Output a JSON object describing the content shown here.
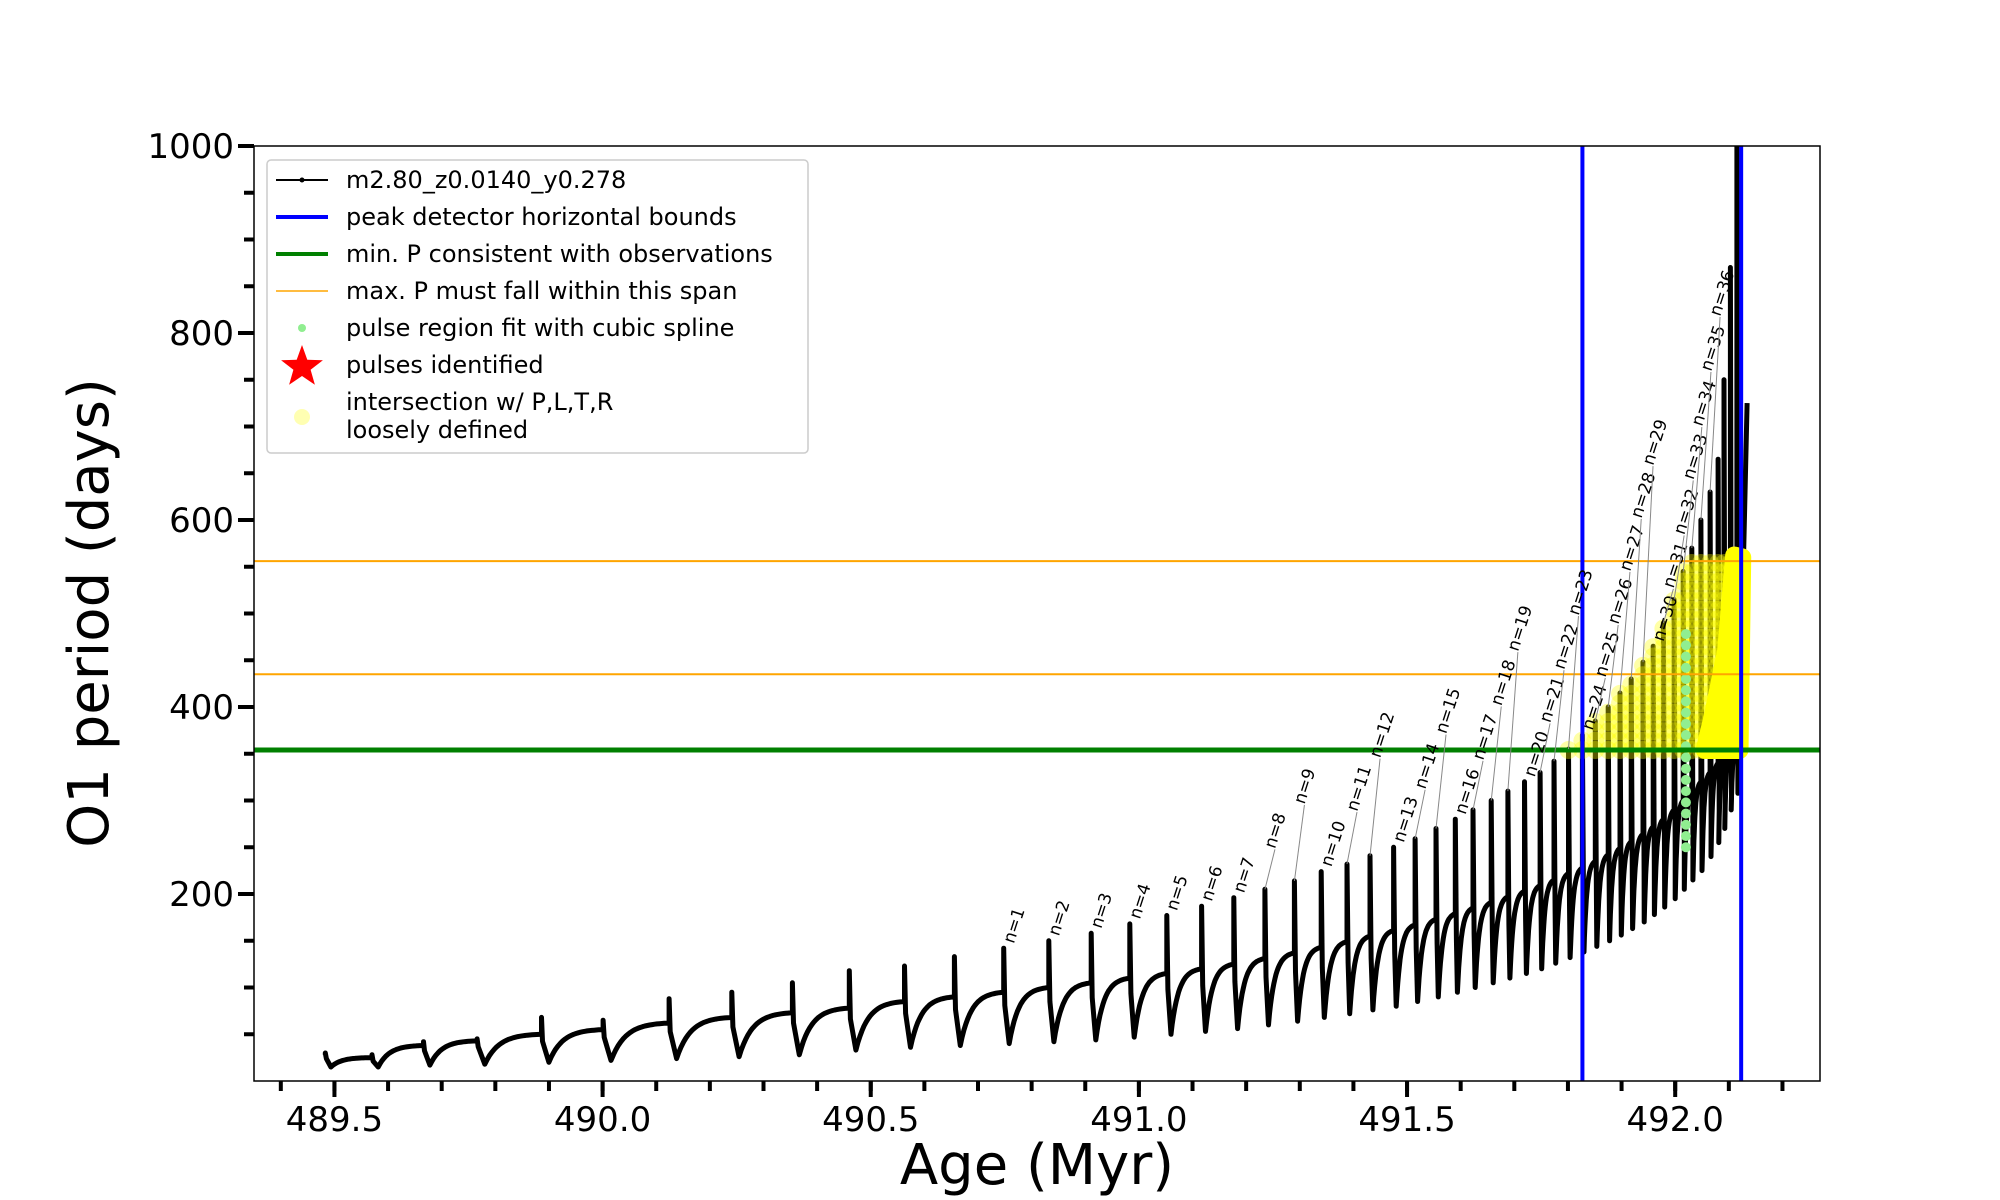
{
  "chart_data": {
    "type": "line",
    "title": "",
    "xlabel": "Age (Myr)",
    "ylabel": "O1 period (days)",
    "xlim": [
      489.35,
      492.27
    ],
    "ylim": [
      0,
      1000
    ],
    "x_major_ticks": [
      489.5,
      490.0,
      490.5,
      491.0,
      491.5,
      492.0
    ],
    "x_tick_labels": [
      "489.5",
      "490.0",
      "490.5",
      "491.0",
      "491.5",
      "492.0"
    ],
    "x_minor_step": 0.1,
    "y_major_ticks": [
      200,
      400,
      600,
      800,
      1000
    ],
    "y_tick_labels": [
      "200",
      "400",
      "600",
      "800",
      "1000"
    ],
    "y_minor_step": 50,
    "grid": false,
    "legend_placement": "upper-left",
    "legend": [
      {
        "label": "m2.80_z0.0140_y0.278",
        "style": "line-marker",
        "color": "#000000"
      },
      {
        "label": "peak detector horizontal bounds",
        "style": "thick-line",
        "color": "#0000ff"
      },
      {
        "label": "min. P consistent with observations",
        "style": "thick-line",
        "color": "#008000"
      },
      {
        "label": "max. P must fall within this span",
        "style": "thin-line",
        "color": "#ffa500"
      },
      {
        "label": "pulse region fit with cubic spline",
        "style": "dot",
        "color": "#90ee90"
      },
      {
        "label": "pulses identified",
        "style": "star",
        "color": "#ff0000"
      },
      {
        "label": "intersection w/ P,L,T,R",
        "label2": "loosely defined",
        "style": "dot",
        "color": "#ffff66"
      }
    ],
    "vertical_bounds": {
      "color": "#0000ff",
      "x": [
        491.827,
        492.123
      ]
    },
    "min_period": {
      "color": "#008000",
      "y": 354
    },
    "max_period_span": {
      "color": "#ffa500",
      "y": [
        435,
        556
      ]
    },
    "series": {
      "name": "m2.80_z0.0140_y0.278",
      "color": "#000000",
      "end": {
        "age": 492.134,
        "period": 725
      },
      "pulses": [
        {
          "age": 489.483,
          "pre": 28,
          "peak": 30,
          "trough": 15,
          "label": ""
        },
        {
          "age": 489.57,
          "pre": 25,
          "peak": 28,
          "trough": 15,
          "label": ""
        },
        {
          "age": 489.666,
          "pre": 38,
          "peak": 42,
          "trough": 17,
          "label": ""
        },
        {
          "age": 489.766,
          "pre": 43,
          "peak": 45,
          "trough": 18,
          "label": ""
        },
        {
          "age": 489.886,
          "pre": 50,
          "peak": 68,
          "trough": 20,
          "label": ""
        },
        {
          "age": 490.001,
          "pre": 55,
          "peak": 65,
          "trough": 22,
          "label": ""
        },
        {
          "age": 490.124,
          "pre": 62,
          "peak": 88,
          "trough": 24,
          "label": ""
        },
        {
          "age": 490.241,
          "pre": 68,
          "peak": 95,
          "trough": 26,
          "label": ""
        },
        {
          "age": 490.354,
          "pre": 73,
          "peak": 105,
          "trough": 28,
          "label": ""
        },
        {
          "age": 490.46,
          "pre": 78,
          "peak": 118,
          "trough": 33,
          "label": ""
        },
        {
          "age": 490.563,
          "pre": 85,
          "peak": 123,
          "trough": 36,
          "label": ""
        },
        {
          "age": 490.656,
          "pre": 90,
          "peak": 133,
          "trough": 38,
          "label": ""
        },
        {
          "age": 490.748,
          "pre": 95,
          "peak": 142,
          "trough": 40,
          "label": "n=1"
        },
        {
          "age": 490.832,
          "pre": 100,
          "peak": 150,
          "trough": 42,
          "label": "n=2"
        },
        {
          "age": 490.911,
          "pre": 105,
          "peak": 158,
          "trough": 44,
          "label": "n=3"
        },
        {
          "age": 490.983,
          "pre": 110,
          "peak": 168,
          "trough": 47,
          "label": "n=4"
        },
        {
          "age": 491.052,
          "pre": 115,
          "peak": 177,
          "trough": 50,
          "label": "n=5"
        },
        {
          "age": 491.117,
          "pre": 120,
          "peak": 187,
          "trough": 53,
          "label": "n=6"
        },
        {
          "age": 491.177,
          "pre": 125,
          "peak": 196,
          "trough": 56,
          "label": "n=7"
        },
        {
          "age": 491.235,
          "pre": 131,
          "peak": 205,
          "trough": 60,
          "label": "n=8"
        },
        {
          "age": 491.29,
          "pre": 137,
          "peak": 214,
          "trough": 64,
          "label": "n=9"
        },
        {
          "age": 491.34,
          "pre": 143,
          "peak": 224,
          "trough": 68,
          "label": "n=10"
        },
        {
          "age": 491.388,
          "pre": 149,
          "peak": 232,
          "trough": 72,
          "label": "n=11"
        },
        {
          "age": 491.431,
          "pre": 155,
          "peak": 241,
          "trough": 76,
          "label": "n=12"
        },
        {
          "age": 491.475,
          "pre": 161,
          "peak": 250,
          "trough": 80,
          "label": "n=13"
        },
        {
          "age": 491.515,
          "pre": 167,
          "peak": 259,
          "trough": 85,
          "label": "n=14"
        },
        {
          "age": 491.554,
          "pre": 173,
          "peak": 270,
          "trough": 90,
          "label": "n=15"
        },
        {
          "age": 491.59,
          "pre": 179,
          "peak": 280,
          "trough": 95,
          "label": "n=16"
        },
        {
          "age": 491.623,
          "pre": 185,
          "peak": 290,
          "trough": 100,
          "label": "n=17"
        },
        {
          "age": 491.657,
          "pre": 191,
          "peak": 300,
          "trough": 105,
          "label": "n=18"
        },
        {
          "age": 491.688,
          "pre": 197,
          "peak": 310,
          "trough": 110,
          "label": "n=19"
        },
        {
          "age": 491.719,
          "pre": 203,
          "peak": 320,
          "trough": 115,
          "label": "n=20"
        },
        {
          "age": 491.748,
          "pre": 209,
          "peak": 330,
          "trough": 120,
          "label": "n=21"
        },
        {
          "age": 491.774,
          "pre": 215,
          "peak": 342,
          "trough": 126,
          "label": "n=22"
        },
        {
          "age": 491.801,
          "pre": 222,
          "peak": 355,
          "trough": 132,
          "label": "n=23"
        },
        {
          "age": 491.827,
          "pre": 228,
          "peak": 370,
          "trough": 138,
          "label": "n=24"
        },
        {
          "age": 491.851,
          "pre": 235,
          "peak": 385,
          "trough": 144,
          "label": "n=25"
        },
        {
          "age": 491.875,
          "pre": 242,
          "peak": 400,
          "trough": 150,
          "label": "n=26"
        },
        {
          "age": 491.897,
          "pre": 249,
          "peak": 415,
          "trough": 156,
          "label": "n=27"
        },
        {
          "age": 491.918,
          "pre": 256,
          "peak": 430,
          "trough": 163,
          "label": "n=28"
        },
        {
          "age": 491.94,
          "pre": 264,
          "peak": 448,
          "trough": 170,
          "label": "n=29"
        },
        {
          "age": 491.959,
          "pre": 272,
          "peak": 465,
          "trough": 178,
          "label": "n=30"
        },
        {
          "age": 491.978,
          "pre": 280,
          "peak": 490,
          "trough": 186,
          "label": "n=31"
        },
        {
          "age": 491.998,
          "pre": 290,
          "peak": 515,
          "trough": 195,
          "label": "n=32"
        },
        {
          "age": 492.015,
          "pre": 300,
          "peak": 545,
          "trough": 205,
          "label": "n=33"
        },
        {
          "age": 492.031,
          "pre": 310,
          "peak": 570,
          "trough": 215,
          "label": "n=34"
        },
        {
          "age": 492.048,
          "pre": 320,
          "peak": 600,
          "trough": 225,
          "label": "n=35"
        },
        {
          "age": 492.065,
          "pre": 330,
          "peak": 630,
          "trough": 240,
          "label": "n=36"
        },
        {
          "age": 492.08,
          "pre": 340,
          "peak": 665,
          "trough": 255,
          "label": ""
        },
        {
          "age": 492.091,
          "pre": 348,
          "peak": 750,
          "trough": 270,
          "label": ""
        },
        {
          "age": 492.103,
          "pre": 355,
          "peak": 870,
          "trough": 290,
          "label": ""
        },
        {
          "age": 492.115,
          "pre": 362,
          "peak": 1000,
          "trough": 310,
          "label": ""
        }
      ]
    },
    "spline_points": {
      "color": "#90ee90",
      "age": 492.02,
      "period_range": [
        250,
        480
      ]
    },
    "intersection_region": {
      "color": "#ffff00",
      "age_range": [
        491.8,
        492.12
      ],
      "blob": [
        [
          492.055,
          354
        ],
        [
          492.12,
          354
        ],
        [
          492.125,
          560
        ],
        [
          492.11,
          562
        ],
        [
          492.095,
          460
        ],
        [
          492.07,
          390
        ]
      ]
    }
  }
}
